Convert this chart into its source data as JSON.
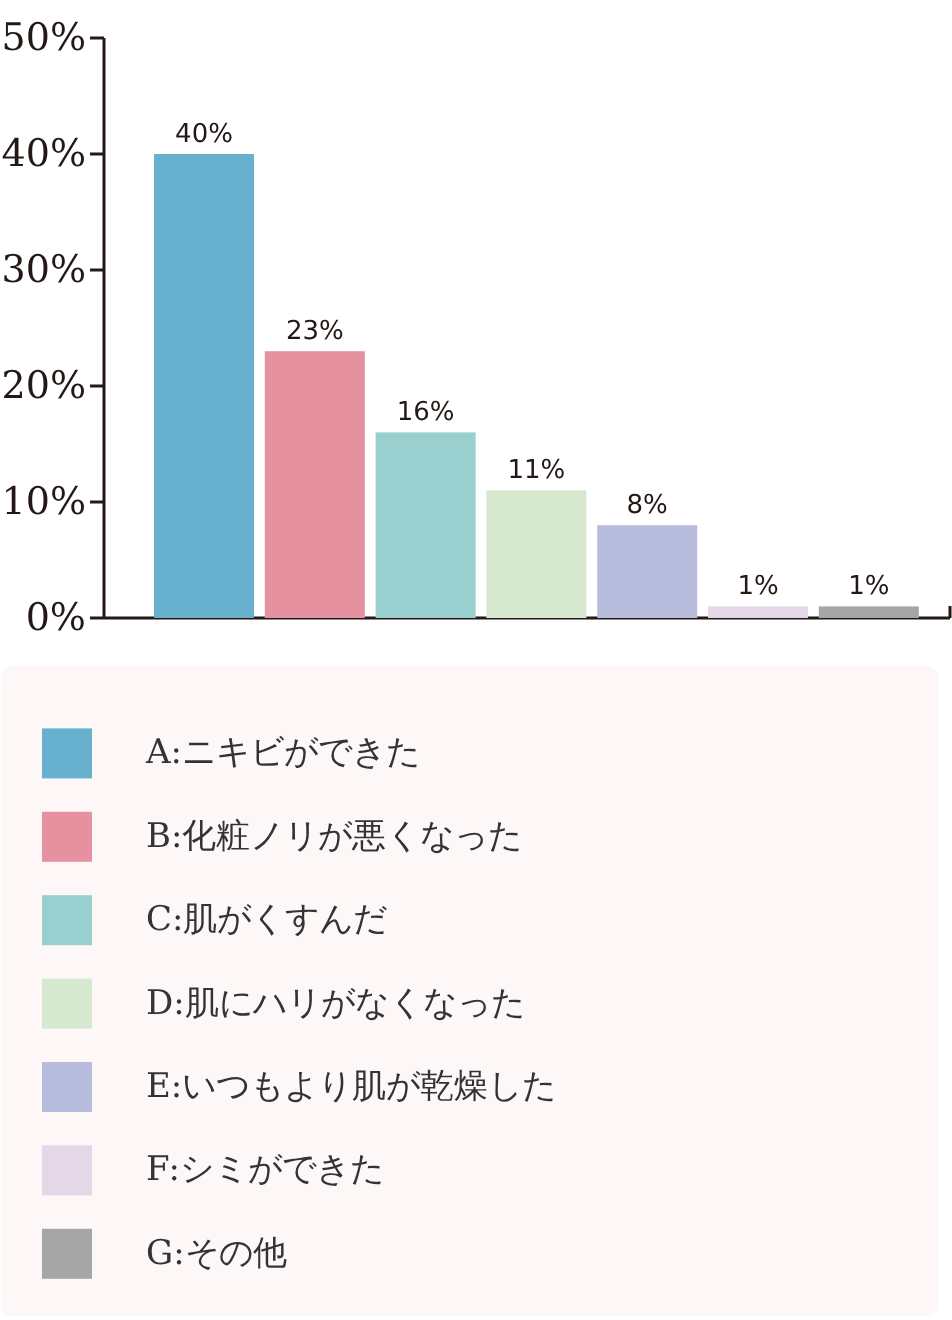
{
  "chart_data": {
    "type": "bar",
    "stacked": true,
    "categories": [
      null,
      null,
      null,
      null,
      null,
      null,
      null
    ],
    "series": [
      {
        "name": "A:ニキビができた",
        "color": "#67b1cf",
        "values": [
          40,
          null,
          null,
          null,
          null,
          null,
          null
        ],
        "value_labels": [
          "40%",
          null,
          null,
          null,
          null,
          null,
          null
        ]
      },
      {
        "name": "B:化粧ノリが悪くなった",
        "color": "#e6919f",
        "values": [
          null,
          23,
          null,
          null,
          null,
          null,
          null
        ],
        "value_labels": [
          null,
          "23%",
          null,
          null,
          null,
          null,
          null
        ]
      },
      {
        "name": "C:肌がくすんだ",
        "color": "#9acfcf",
        "values": [
          null,
          null,
          16,
          null,
          null,
          null,
          null
        ],
        "value_labels": [
          null,
          null,
          "16%",
          null,
          null,
          null,
          null
        ]
      },
      {
        "name": "D:肌にハリがなくなった",
        "color": "#d6e8cf",
        "values": [
          null,
          null,
          null,
          11,
          null,
          null,
          null
        ],
        "value_labels": [
          null,
          null,
          null,
          "11%",
          null,
          null,
          null
        ]
      },
      {
        "name": "E:いつもより肌が乾燥した",
        "color": "#b7bbdc",
        "values": [
          null,
          null,
          null,
          null,
          8,
          null,
          null
        ],
        "value_labels": [
          null,
          null,
          null,
          null,
          "8%",
          null,
          null
        ]
      },
      {
        "name": "F:シミができた",
        "color": "#e4d8e8",
        "values": [
          null,
          null,
          null,
          null,
          null,
          1,
          null
        ],
        "value_labels": [
          null,
          null,
          null,
          null,
          null,
          "1%",
          null
        ]
      },
      {
        "name": "G:その他",
        "color": "#a6a6a6",
        "values": [
          null,
          null,
          null,
          null,
          null,
          null,
          1
        ],
        "value_labels": [
          null,
          null,
          null,
          null,
          null,
          null,
          "1%"
        ]
      }
    ],
    "ylim": [
      0,
      50
    ],
    "yticks": [
      {
        "value": 0,
        "label": "0%"
      },
      {
        "value": 10,
        "label": "10%"
      },
      {
        "value": 20,
        "label": "20%"
      },
      {
        "value": 30,
        "label": "30%"
      },
      {
        "value": 40,
        "label": "40%"
      },
      {
        "value": 50,
        "label": "50%"
      }
    ],
    "legend": "bottom",
    "tick_labels": "y"
  }
}
